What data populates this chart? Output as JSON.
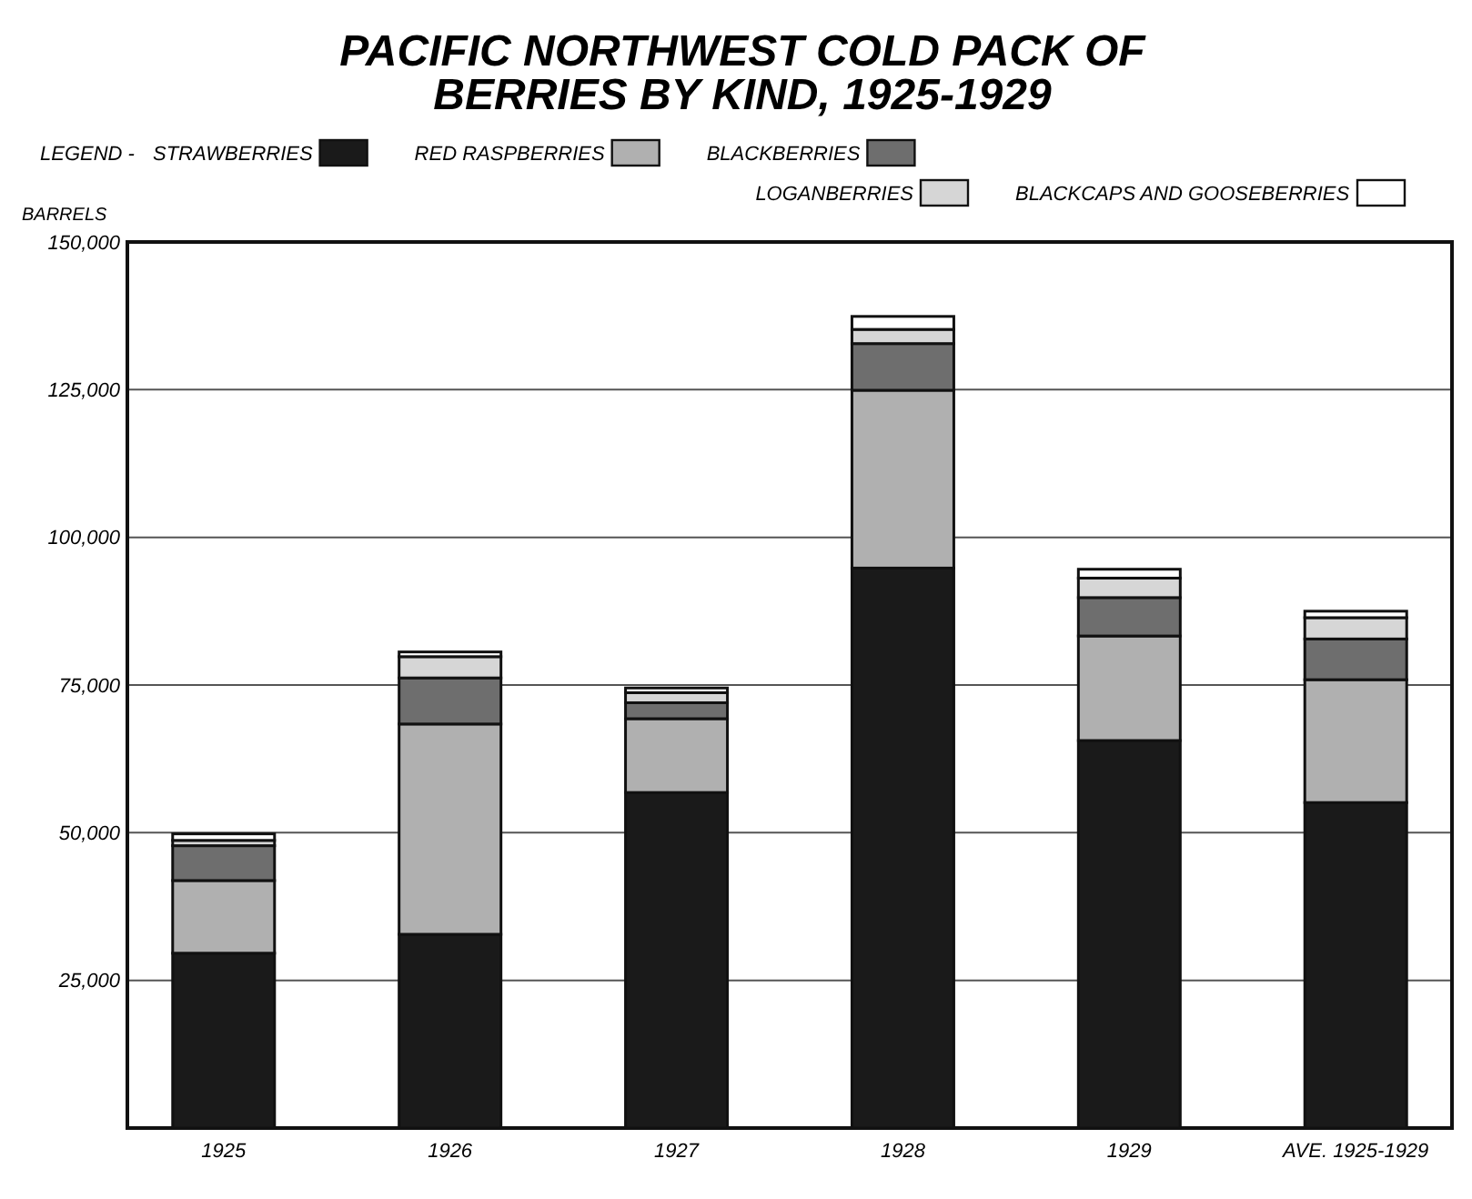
{
  "chart_data": {
    "type": "bar",
    "title": "PACIFIC NORTHWEST COLD PACK OF BERRIES BY KIND, 1925-1929",
    "legend_title": "LEGEND -",
    "ylabel": "BARRELS",
    "stacked": true,
    "legend": "top",
    "grid": "y",
    "categories": [
      "1925",
      "1926",
      "1927",
      "1928",
      "1929",
      "AVE. 1925-1929"
    ],
    "ylim": [
      0,
      150000
    ],
    "yticks": [
      {
        "value": 25000,
        "label": "25,000"
      },
      {
        "value": 50000,
        "label": "50,000"
      },
      {
        "value": 75000,
        "label": "75,000"
      },
      {
        "value": 100000,
        "label": "100,000"
      },
      {
        "value": 125000,
        "label": "125,000"
      },
      {
        "value": 150000,
        "label": "150,000"
      }
    ],
    "series": [
      {
        "name": "STRAWBERRIES",
        "color": "#1a1a1a",
        "values": [
          29600,
          32800,
          56800,
          94800,
          65600,
          55100
        ]
      },
      {
        "name": "RED RASPBERRIES",
        "color": "#b0b0b0",
        "values": [
          12300,
          35600,
          12500,
          30100,
          17700,
          20800
        ]
      },
      {
        "name": "BLACKBERRIES",
        "color": "#6e6e6e",
        "values": [
          5900,
          7800,
          2700,
          7900,
          6500,
          6900
        ]
      },
      {
        "name": "LOGANBERRIES",
        "color": "#d6d6d6",
        "values": [
          900,
          3600,
          1700,
          2400,
          3300,
          3600
        ]
      },
      {
        "name": "BLACKCAPS AND GOOSEBERRIES",
        "color": "#ffffff",
        "values": [
          1100,
          800,
          800,
          2200,
          1500,
          1100
        ]
      }
    ]
  }
}
